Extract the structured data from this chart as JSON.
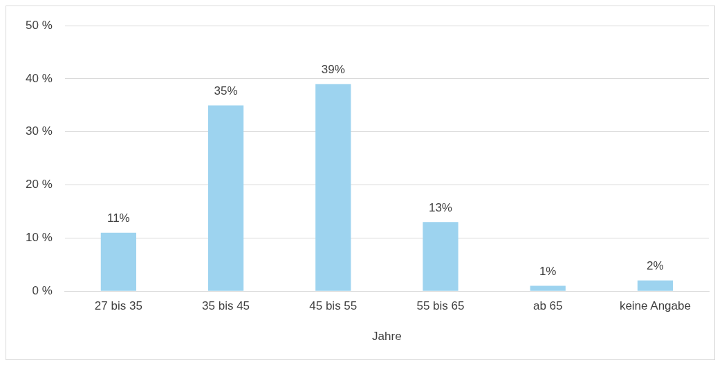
{
  "chart_data": {
    "type": "bar",
    "xlabel": "Jahre",
    "categories": [
      "27 bis 35",
      "35 bis 45",
      "45 bis 55",
      "55 bis 65",
      "ab 65",
      "keine Angabe"
    ],
    "values": [
      11,
      35,
      39,
      13,
      1,
      2
    ],
    "value_labels": [
      "11%",
      "35%",
      "39%",
      "13%",
      "1%",
      "2%"
    ],
    "color": "#9dd3ef",
    "ylim": [
      0,
      50
    ],
    "yticks": [
      {
        "value": 0,
        "label": "0 %"
      },
      {
        "value": 10,
        "label": "10 %"
      },
      {
        "value": 20,
        "label": "20 %"
      },
      {
        "value": 30,
        "label": "30 %"
      },
      {
        "value": 40,
        "label": "40 %"
      },
      {
        "value": 50,
        "label": "50 %"
      }
    ],
    "grid": "y",
    "legend": false
  }
}
